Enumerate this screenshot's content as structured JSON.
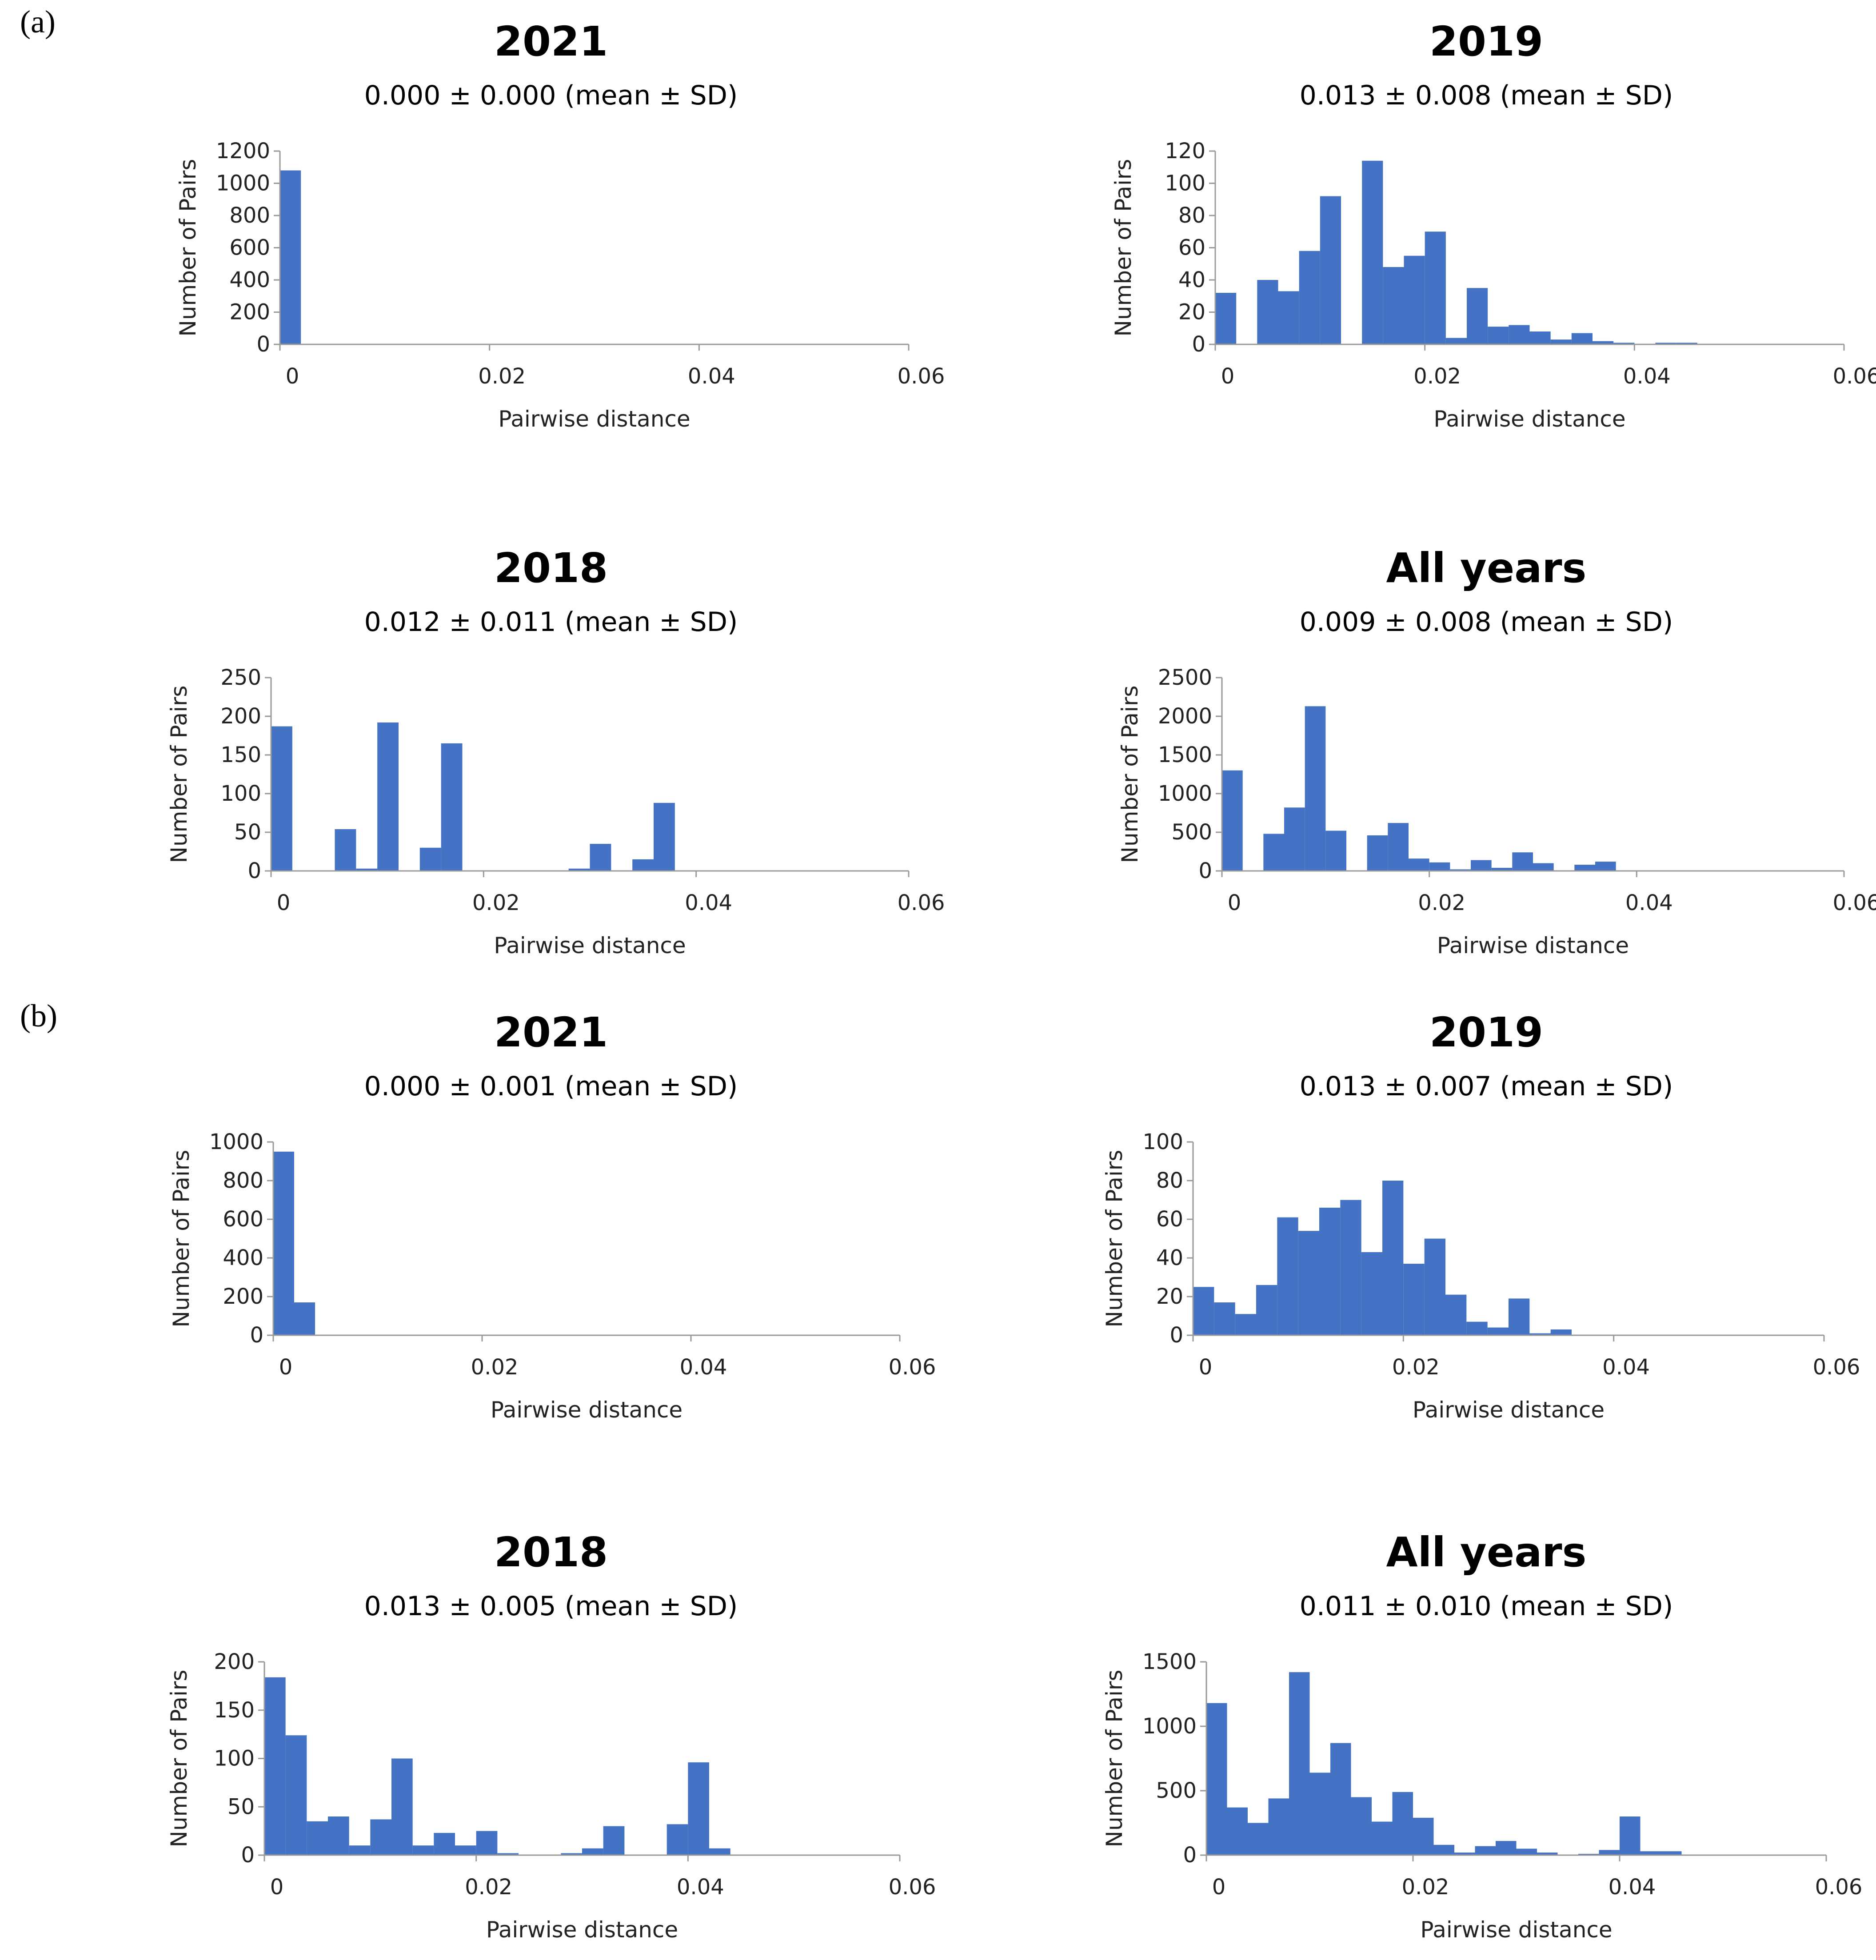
{
  "labels": {
    "a": "(a)",
    "b": "(b)"
  },
  "bar_color": "#4472C4",
  "chart_data": [
    {
      "type": "bar",
      "panel": "a",
      "title": "2021",
      "subtitle": "0.000 ± 0.000 (mean ± SD)",
      "xlabel": "Pairwise distance",
      "ylabel": "Number of Pairs",
      "xlim": [
        0,
        0.06
      ],
      "ylim": [
        0,
        1200
      ],
      "xticks": [
        "0",
        "0.02",
        "0.04",
        "0.06"
      ],
      "yticks": [
        "0",
        "200",
        "400",
        "600",
        "800",
        "1000",
        "1200"
      ],
      "bin_width": 0.002,
      "values": [
        1080
      ]
    },
    {
      "type": "bar",
      "panel": "a",
      "title": "2019",
      "subtitle": "0.013 ± 0.008 (mean ± SD)",
      "xlabel": "Pairwise distance",
      "ylabel": "Number of Pairs",
      "xlim": [
        0,
        0.06
      ],
      "ylim": [
        0,
        120
      ],
      "xticks": [
        "0",
        "0.02",
        "0.04",
        "0.06"
      ],
      "yticks": [
        "0",
        "20",
        "40",
        "60",
        "80",
        "100",
        "120"
      ],
      "bin_width": 0.002,
      "values": [
        32,
        0,
        40,
        33,
        58,
        92,
        0,
        114,
        48,
        55,
        70,
        4,
        35,
        11,
        12,
        8,
        3,
        7,
        2,
        1,
        0,
        1,
        1,
        0,
        0,
        0,
        0,
        0,
        0,
        0
      ]
    },
    {
      "type": "bar",
      "panel": "a",
      "title": "2018",
      "subtitle": "0.012 ± 0.011 (mean ± SD)",
      "xlabel": "Pairwise distance",
      "ylabel": "Number of Pairs",
      "xlim": [
        0,
        0.06
      ],
      "ylim": [
        0,
        250
      ],
      "xticks": [
        "0",
        "0.02",
        "0.04",
        "0.06"
      ],
      "yticks": [
        "0",
        "50",
        "100",
        "150",
        "200",
        "250"
      ],
      "bin_width": 0.002,
      "values": [
        187,
        0,
        0,
        54,
        3,
        192,
        0,
        30,
        165,
        0,
        0,
        0,
        0,
        0,
        3,
        35,
        0,
        15,
        88,
        0,
        0,
        0,
        0,
        0,
        0,
        0,
        0,
        0,
        0,
        0
      ]
    },
    {
      "type": "bar",
      "panel": "a",
      "title": "All years",
      "subtitle": "0.009 ± 0.008 (mean ± SD)",
      "xlabel": "Pairwise distance",
      "ylabel": "Number of Pairs",
      "xlim": [
        0,
        0.06
      ],
      "ylim": [
        0,
        2500
      ],
      "xticks": [
        "0",
        "0.02",
        "0.04",
        "0.06"
      ],
      "yticks": [
        "0",
        "500",
        "1000",
        "1500",
        "2000",
        "2500"
      ],
      "bin_width": 0.002,
      "values": [
        1300,
        0,
        480,
        820,
        2130,
        520,
        0,
        460,
        620,
        160,
        110,
        20,
        140,
        40,
        240,
        100,
        0,
        80,
        120,
        0,
        0,
        0,
        0,
        0,
        0,
        0,
        0,
        0,
        0,
        0
      ]
    },
    {
      "type": "bar",
      "panel": "b",
      "title": "2021",
      "subtitle": "0.000 ± 0.001 (mean ± SD)",
      "xlabel": "Pairwise distance",
      "ylabel": "Number of Pairs",
      "xlim": [
        0,
        0.06
      ],
      "ylim": [
        0,
        1000
      ],
      "xticks": [
        "0",
        "0.02",
        "0.04",
        "0.06"
      ],
      "yticks": [
        "0",
        "200",
        "400",
        "600",
        "800",
        "1000"
      ],
      "bin_width": 0.002,
      "values": [
        950,
        170
      ]
    },
    {
      "type": "bar",
      "panel": "b",
      "title": "2019",
      "subtitle": "0.013 ± 0.007 (mean ± SD)",
      "xlabel": "Pairwise distance",
      "ylabel": "Number of Pairs",
      "xlim": [
        0,
        0.06
      ],
      "ylim": [
        0,
        100
      ],
      "xticks": [
        "0",
        "0.02",
        "0.04",
        "0.06"
      ],
      "yticks": [
        "0",
        "20",
        "40",
        "60",
        "80",
        "100"
      ],
      "bin_width": 0.002,
      "values": [
        25,
        17,
        11,
        26,
        61,
        54,
        66,
        70,
        43,
        80,
        37,
        50,
        21,
        7,
        4,
        19,
        1,
        3,
        0,
        0,
        0,
        0,
        0,
        0,
        0,
        0,
        0,
        0,
        0,
        0
      ]
    },
    {
      "type": "bar",
      "panel": "b",
      "title": "2018",
      "subtitle": "0.013 ± 0.005 (mean ± SD)",
      "xlabel": "Pairwise distance",
      "ylabel": "Number of Pairs",
      "xlim": [
        0,
        0.06
      ],
      "ylim": [
        0,
        200
      ],
      "xticks": [
        "0",
        "0.02",
        "0.04",
        "0.06"
      ],
      "yticks": [
        "0",
        "50",
        "100",
        "150",
        "200"
      ],
      "bin_width": 0.002,
      "values": [
        184,
        124,
        35,
        40,
        10,
        37,
        100,
        10,
        23,
        10,
        25,
        2,
        0,
        0,
        2,
        7,
        30,
        0,
        0,
        32,
        96,
        7,
        0,
        0,
        0,
        0,
        0,
        0,
        0,
        0
      ]
    },
    {
      "type": "bar",
      "panel": "b",
      "title": "All years",
      "subtitle": "0.011 ± 0.010 (mean ± SD)",
      "xlabel": "Pairwise distance",
      "ylabel": "Number of Pairs",
      "xlim": [
        0,
        0.06
      ],
      "ylim": [
        0,
        1500
      ],
      "xticks": [
        "0",
        "0.02",
        "0.04",
        "0.06"
      ],
      "yticks": [
        "0",
        "500",
        "1000",
        "1500"
      ],
      "bin_width": 0.002,
      "values": [
        1180,
        370,
        250,
        440,
        1420,
        640,
        870,
        450,
        260,
        490,
        290,
        80,
        20,
        70,
        110,
        50,
        20,
        0,
        10,
        40,
        300,
        30,
        30,
        0,
        0,
        0,
        0,
        0,
        0,
        0
      ]
    }
  ]
}
